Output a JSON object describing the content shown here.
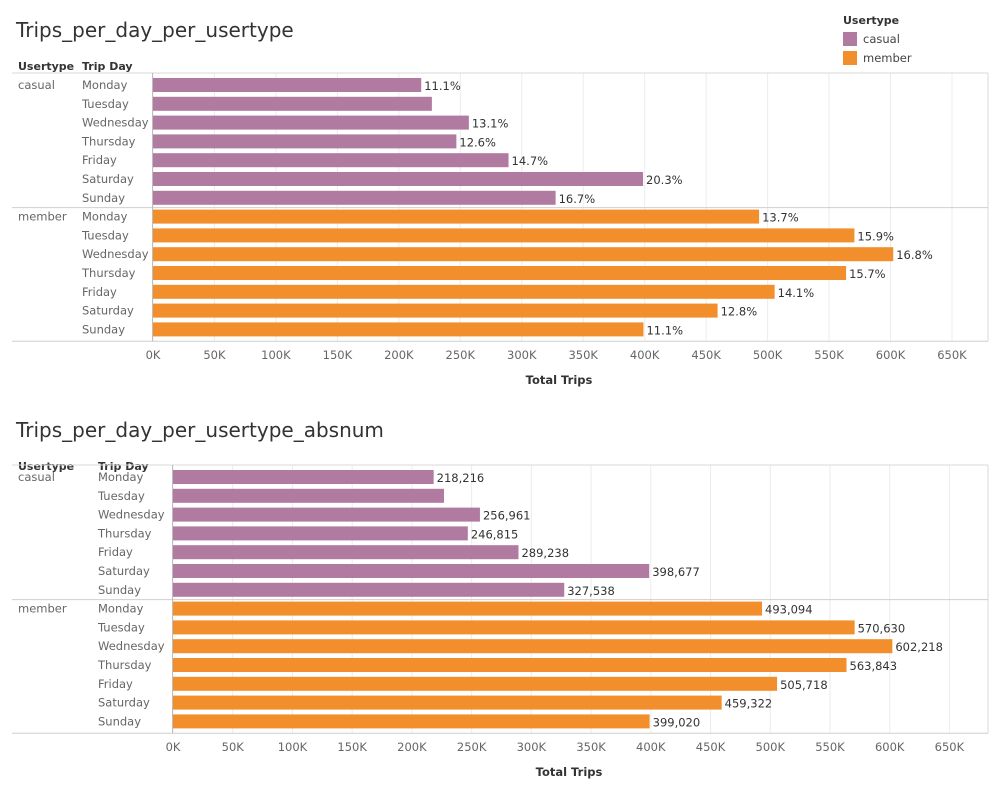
{
  "colors": {
    "casual": "#B07AA1",
    "member": "#F28E2B"
  },
  "legend": {
    "title": "Usertype",
    "items": [
      {
        "label": "casual",
        "color": "#B07AA1"
      },
      {
        "label": "member",
        "color": "#F28E2B"
      }
    ]
  },
  "charts": [
    {
      "title": "Trips_per_day_per_usertype",
      "usertype_header": "Usertype",
      "tripday_header": "Trip Day",
      "xlabel": "Total Trips"
    },
    {
      "title": "Trips_per_day_per_usertype_absnum",
      "usertype_header": "Usertype",
      "tripday_header": "Trip Day",
      "xlabel": "Total Trips"
    }
  ],
  "chart_data": [
    {
      "type": "bar",
      "orientation": "horizontal",
      "title": "Trips_per_day_per_usertype",
      "xlabel": "Total Trips",
      "xlim": [
        0,
        680000
      ],
      "xticks": [
        "0K",
        "50K",
        "100K",
        "150K",
        "200K",
        "250K",
        "300K",
        "350K",
        "400K",
        "450K",
        "500K",
        "550K",
        "600K",
        "650K"
      ],
      "tick_values": [
        0,
        50000,
        100000,
        150000,
        200000,
        250000,
        300000,
        350000,
        400000,
        450000,
        500000,
        550000,
        600000,
        650000
      ],
      "legend_position": "top-right",
      "groups": [
        {
          "usertype": "casual",
          "days": [
            "Monday",
            "Tuesday",
            "Wednesday",
            "Thursday",
            "Friday",
            "Saturday",
            "Sunday"
          ],
          "values": [
            218216,
            226879,
            256961,
            246815,
            289238,
            398677,
            327538
          ],
          "labels": [
            "11.1%",
            "",
            "13.1%",
            "12.6%",
            "14.7%",
            "20.3%",
            "16.7%"
          ]
        },
        {
          "usertype": "member",
          "days": [
            "Monday",
            "Tuesday",
            "Wednesday",
            "Thursday",
            "Friday",
            "Saturday",
            "Sunday"
          ],
          "values": [
            493094,
            570630,
            602218,
            563843,
            505718,
            459322,
            399020
          ],
          "labels": [
            "13.7%",
            "15.9%",
            "16.8%",
            "15.7%",
            "14.1%",
            "12.8%",
            "11.1%"
          ]
        }
      ]
    },
    {
      "type": "bar",
      "orientation": "horizontal",
      "title": "Trips_per_day_per_usertype_absnum",
      "xlabel": "Total Trips",
      "xlim": [
        0,
        680000
      ],
      "xticks": [
        "0K",
        "50K",
        "100K",
        "150K",
        "200K",
        "250K",
        "300K",
        "350K",
        "400K",
        "450K",
        "500K",
        "550K",
        "600K",
        "650K"
      ],
      "tick_values": [
        0,
        50000,
        100000,
        150000,
        200000,
        250000,
        300000,
        350000,
        400000,
        450000,
        500000,
        550000,
        600000,
        650000
      ],
      "groups": [
        {
          "usertype": "casual",
          "days": [
            "Monday",
            "Tuesday",
            "Wednesday",
            "Thursday",
            "Friday",
            "Saturday",
            "Sunday"
          ],
          "values": [
            218216,
            226879,
            256961,
            246815,
            289238,
            398677,
            327538
          ],
          "labels": [
            "218,216",
            "",
            "256,961",
            "246,815",
            "289,238",
            "398,677",
            "327,538"
          ]
        },
        {
          "usertype": "member",
          "days": [
            "Monday",
            "Tuesday",
            "Wednesday",
            "Thursday",
            "Friday",
            "Saturday",
            "Sunday"
          ],
          "values": [
            493094,
            570630,
            602218,
            563843,
            505718,
            459322,
            399020
          ],
          "labels": [
            "493,094",
            "570,630",
            "602,218",
            "563,843",
            "505,718",
            "459,322",
            "399,020"
          ]
        }
      ]
    }
  ]
}
